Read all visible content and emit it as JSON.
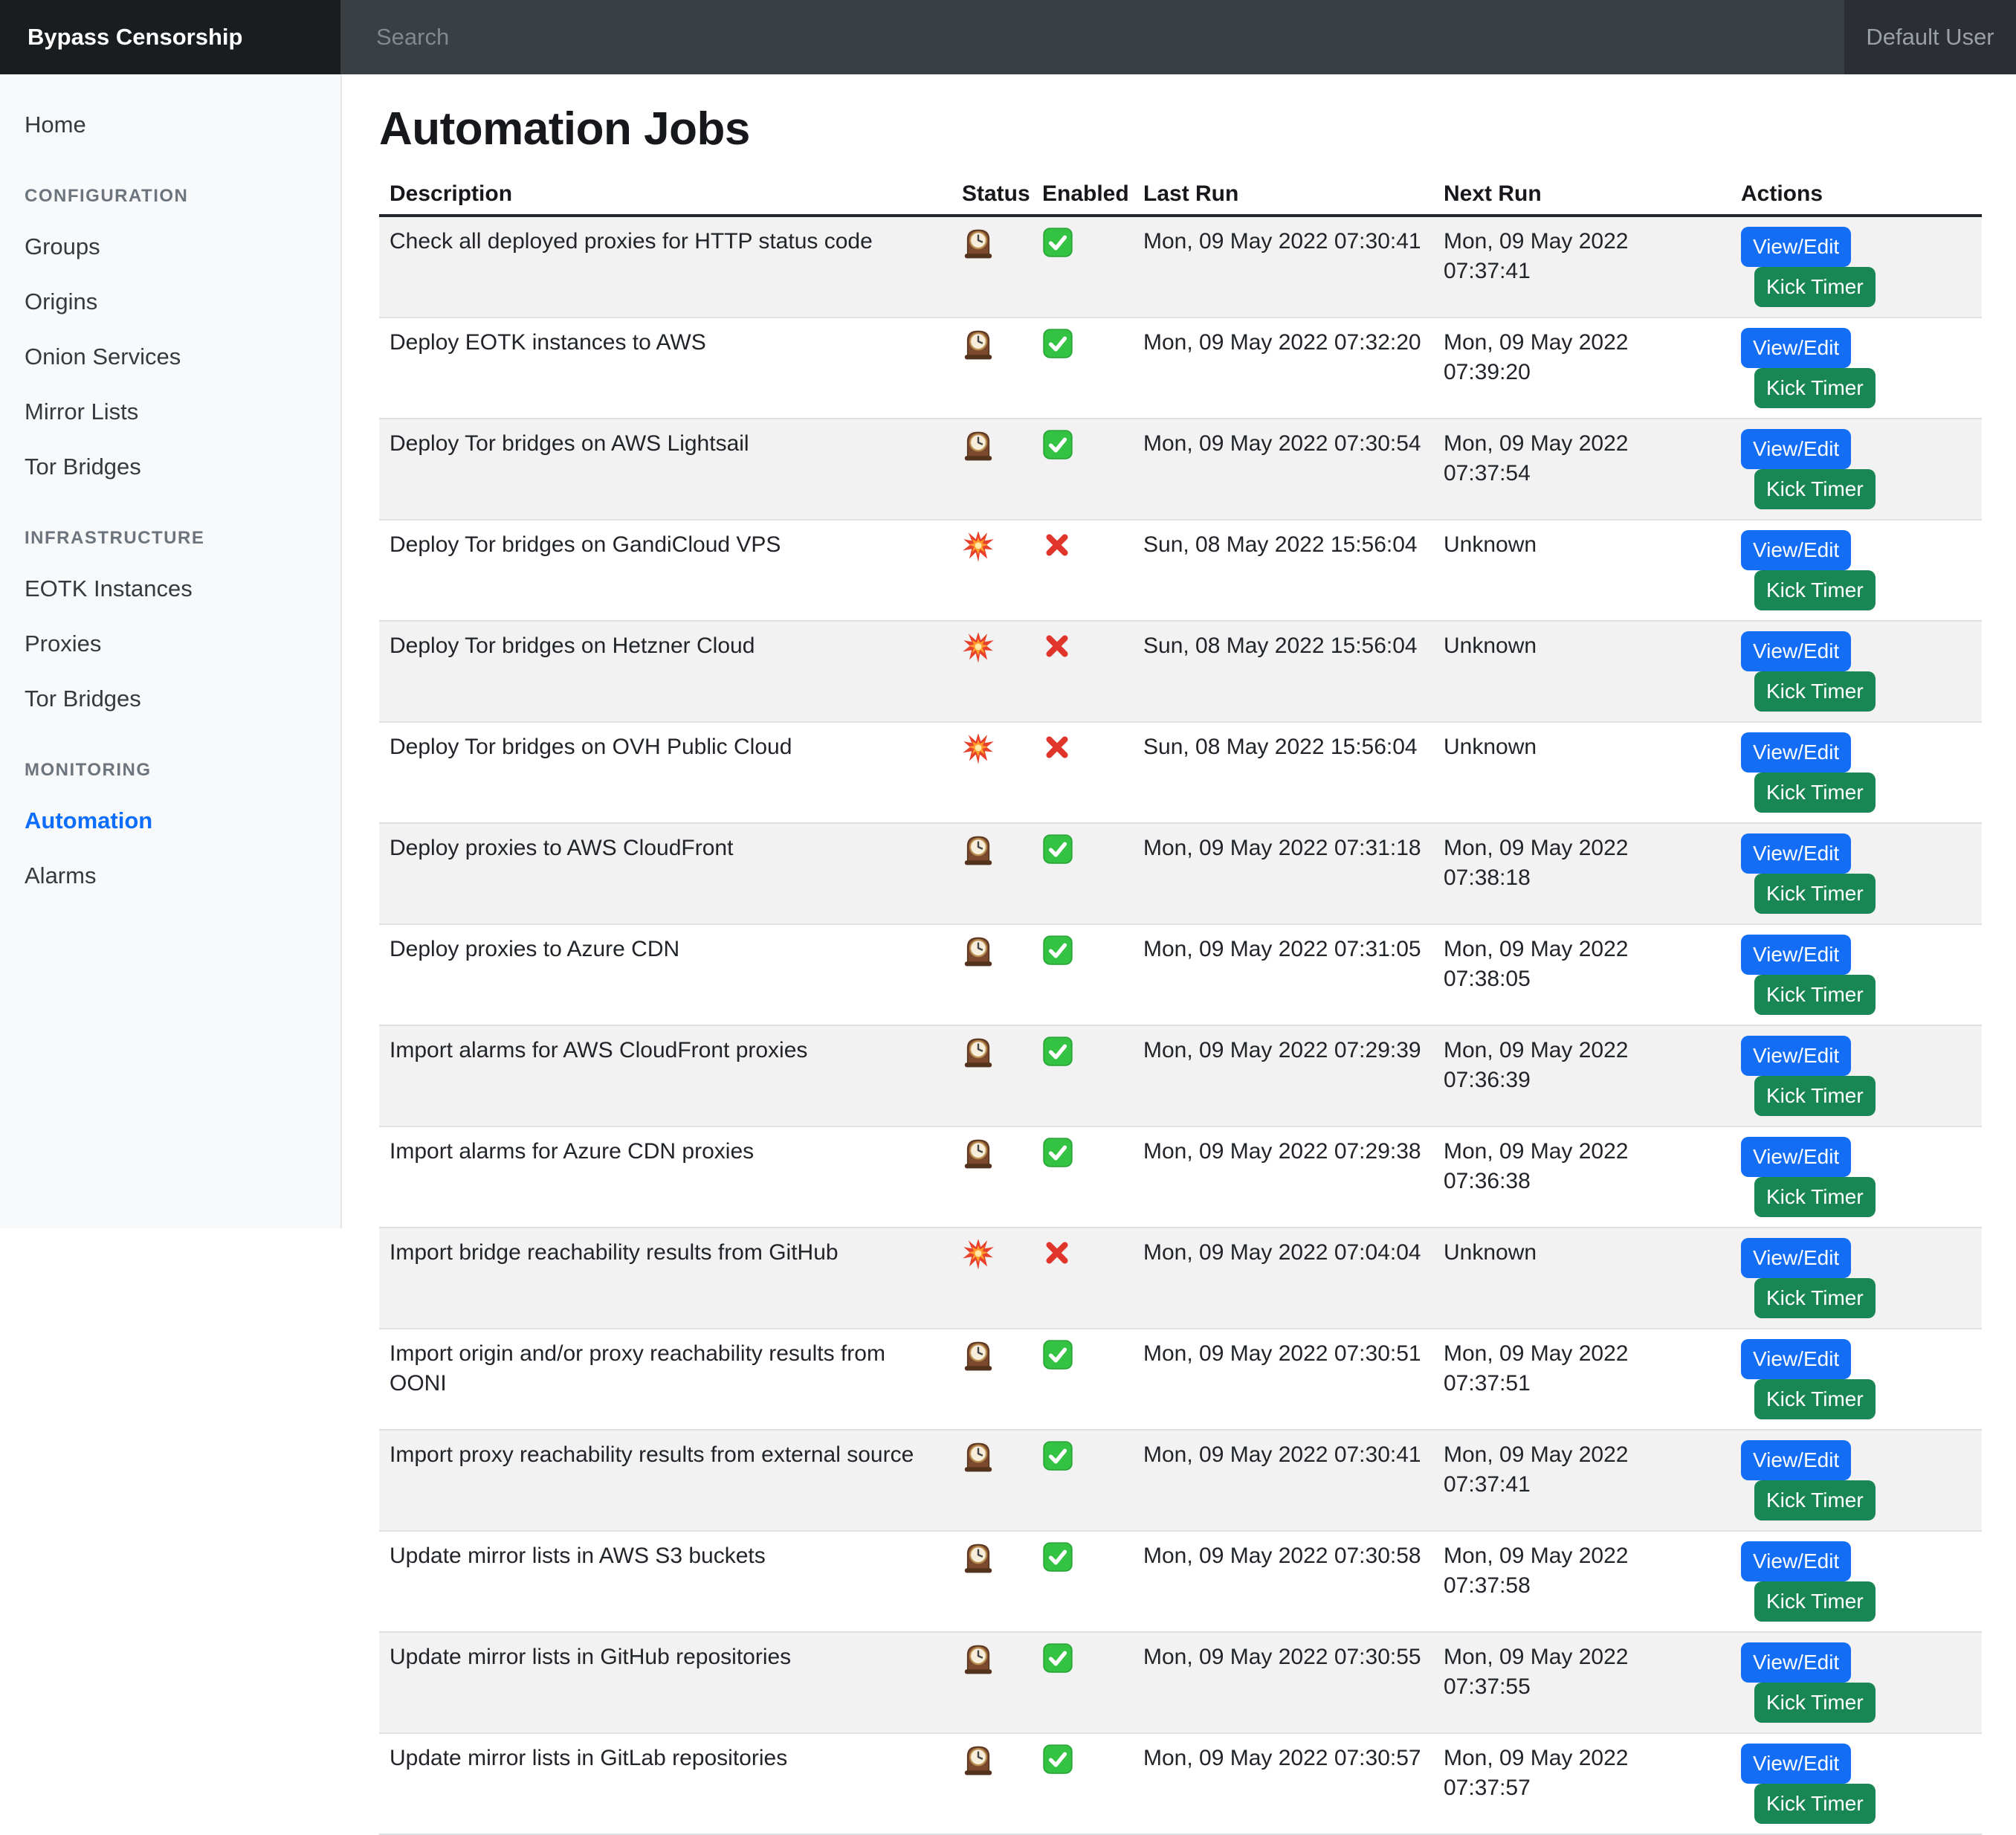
{
  "navbar": {
    "brand": "Bypass Censorship",
    "search_placeholder": "Search",
    "user": "Default User"
  },
  "sidebar": {
    "home": "Home",
    "sections": [
      {
        "heading": "Configuration",
        "items": [
          "Groups",
          "Origins",
          "Onion Services",
          "Mirror Lists",
          "Tor Bridges"
        ]
      },
      {
        "heading": "Infrastructure",
        "items": [
          "EOTK Instances",
          "Proxies",
          "Tor Bridges"
        ]
      },
      {
        "heading": "Monitoring",
        "items": [
          "Automation",
          "Alarms"
        ],
        "active": "Automation"
      }
    ]
  },
  "main": {
    "title": "Automation Jobs",
    "table": {
      "columns": [
        "Description",
        "Status",
        "Enabled",
        "Last Run",
        "Next Run",
        "Actions"
      ],
      "actions": {
        "view_edit": "View/Edit",
        "kick_timer": "Kick Timer"
      },
      "icon_legend": {
        "status_ok": "mantel-clock",
        "status_failed": "collision",
        "enabled_true": "check-mark-button",
        "enabled_false": "cross-mark"
      },
      "rows": [
        {
          "description": "Check all deployed proxies for HTTP status code",
          "status": "ok",
          "enabled": true,
          "last_run": "Mon, 09 May 2022 07:30:41",
          "next_run": "Mon, 09 May 2022 07:37:41"
        },
        {
          "description": "Deploy EOTK instances to AWS",
          "status": "ok",
          "enabled": true,
          "last_run": "Mon, 09 May 2022 07:32:20",
          "next_run": "Mon, 09 May 2022 07:39:20"
        },
        {
          "description": "Deploy Tor bridges on AWS Lightsail",
          "status": "ok",
          "enabled": true,
          "last_run": "Mon, 09 May 2022 07:30:54",
          "next_run": "Mon, 09 May 2022 07:37:54"
        },
        {
          "description": "Deploy Tor bridges on GandiCloud VPS",
          "status": "failed",
          "enabled": false,
          "last_run": "Sun, 08 May 2022 15:56:04",
          "next_run": "Unknown"
        },
        {
          "description": "Deploy Tor bridges on Hetzner Cloud",
          "status": "failed",
          "enabled": false,
          "last_run": "Sun, 08 May 2022 15:56:04",
          "next_run": "Unknown"
        },
        {
          "description": "Deploy Tor bridges on OVH Public Cloud",
          "status": "failed",
          "enabled": false,
          "last_run": "Sun, 08 May 2022 15:56:04",
          "next_run": "Unknown"
        },
        {
          "description": "Deploy proxies to AWS CloudFront",
          "status": "ok",
          "enabled": true,
          "last_run": "Mon, 09 May 2022 07:31:18",
          "next_run": "Mon, 09 May 2022 07:38:18"
        },
        {
          "description": "Deploy proxies to Azure CDN",
          "status": "ok",
          "enabled": true,
          "last_run": "Mon, 09 May 2022 07:31:05",
          "next_run": "Mon, 09 May 2022 07:38:05"
        },
        {
          "description": "Import alarms for AWS CloudFront proxies",
          "status": "ok",
          "enabled": true,
          "last_run": "Mon, 09 May 2022 07:29:39",
          "next_run": "Mon, 09 May 2022 07:36:39"
        },
        {
          "description": "Import alarms for Azure CDN proxies",
          "status": "ok",
          "enabled": true,
          "last_run": "Mon, 09 May 2022 07:29:38",
          "next_run": "Mon, 09 May 2022 07:36:38"
        },
        {
          "description": "Import bridge reachability results from GitHub",
          "status": "failed",
          "enabled": false,
          "last_run": "Mon, 09 May 2022 07:04:04",
          "next_run": "Unknown"
        },
        {
          "description": "Import origin and/or proxy reachability results from OONI",
          "status": "ok",
          "enabled": true,
          "last_run": "Mon, 09 May 2022 07:30:51",
          "next_run": "Mon, 09 May 2022 07:37:51"
        },
        {
          "description": "Import proxy reachability results from external source",
          "status": "ok",
          "enabled": true,
          "last_run": "Mon, 09 May 2022 07:30:41",
          "next_run": "Mon, 09 May 2022 07:37:41"
        },
        {
          "description": "Update mirror lists in AWS S3 buckets",
          "status": "ok",
          "enabled": true,
          "last_run": "Mon, 09 May 2022 07:30:58",
          "next_run": "Mon, 09 May 2022 07:37:58"
        },
        {
          "description": "Update mirror lists in GitHub repositories",
          "status": "ok",
          "enabled": true,
          "last_run": "Mon, 09 May 2022 07:30:55",
          "next_run": "Mon, 09 May 2022 07:37:55"
        },
        {
          "description": "Update mirror lists in GitLab repositories",
          "status": "ok",
          "enabled": true,
          "last_run": "Mon, 09 May 2022 07:30:57",
          "next_run": "Mon, 09 May 2022 07:37:57"
        }
      ]
    }
  },
  "colors": {
    "navbar_bg": "#3a3f44",
    "navbar_brand_bg": "#1a1d20",
    "navbar_user_bg": "#2b2f33",
    "sidebar_bg": "#f8f9fa",
    "active_link": "#0d6efd",
    "button_primary": "#146ef5",
    "button_success": "#198754",
    "header_border": "#23272b",
    "row_stripe": "#f2f2f2"
  }
}
